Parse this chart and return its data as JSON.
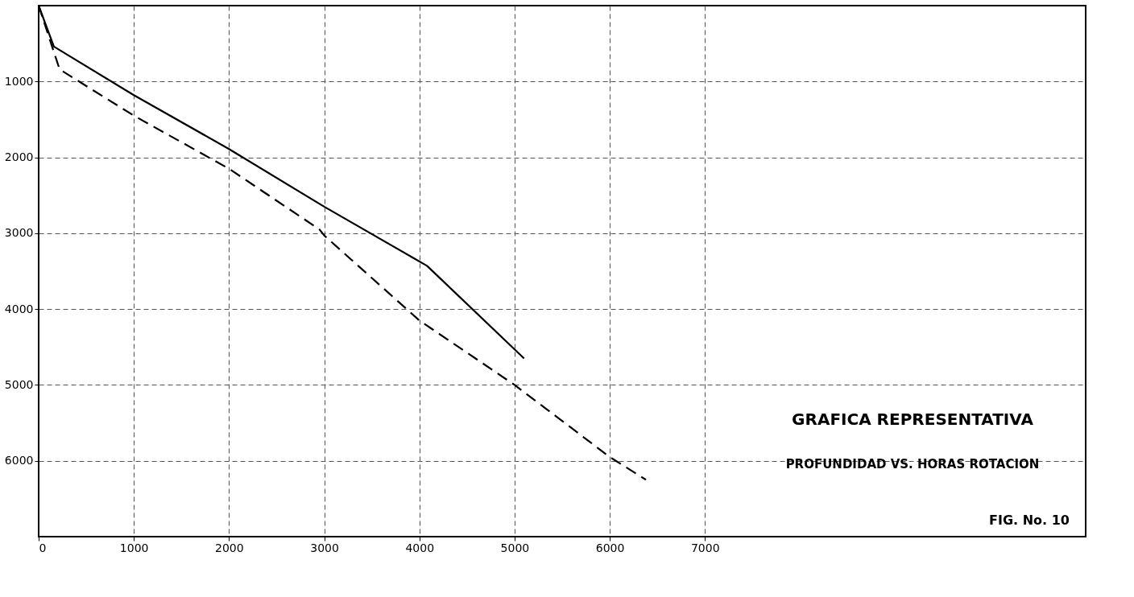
{
  "chart_data": {
    "type": "line",
    "title": "GRAFICA REPRESENTATIVA",
    "subtitle": "PROFUNDIDAD VS. HORAS ROTACION",
    "annotations": [
      "FIG. No. 10"
    ],
    "series": [
      {
        "color": "#000000",
        "line_style": "solid",
        "x": [
          0,
          160,
          1000,
          2000,
          3000,
          4080,
          5100
        ],
        "values": [
          0,
          540,
          1180,
          1890,
          2650,
          3430,
          4650
        ]
      },
      {
        "color": "#000000",
        "line_style": "dashed",
        "x": [
          0,
          220,
          1000,
          2000,
          2950,
          3000,
          4000,
          5000,
          6000,
          6380
        ],
        "values": [
          0,
          840,
          1450,
          2150,
          2950,
          3030,
          4150,
          5000,
          5950,
          6250
        ]
      }
    ],
    "xlim": [
      0,
      11000
    ],
    "ylim": [
      7000,
      0
    ],
    "xticks": [
      0,
      1000,
      2000,
      3000,
      4000,
      5000,
      6000,
      7000
    ],
    "yticks": [
      1000,
      2000,
      3000,
      4000,
      5000,
      6000
    ],
    "grid": true
  }
}
